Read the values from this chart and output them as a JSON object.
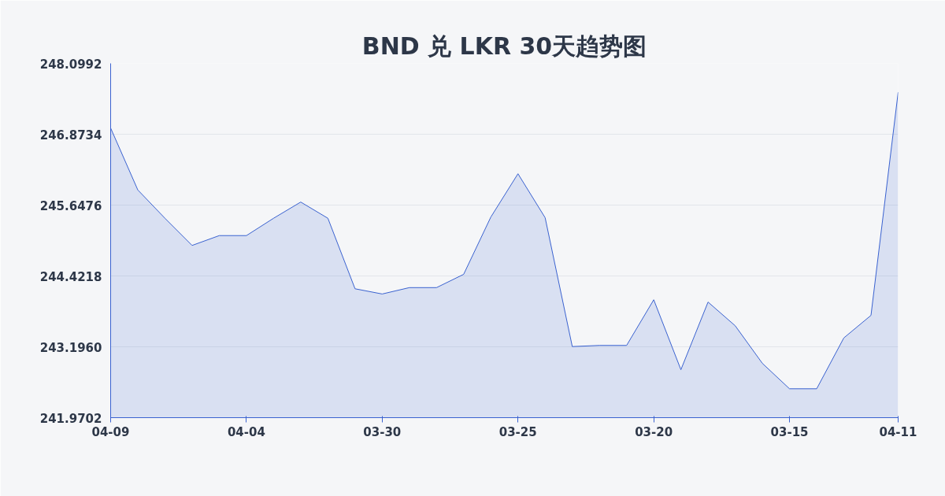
{
  "chart_data": {
    "type": "area",
    "title": "BND 兑 LKR 30天趋势图",
    "categories": [
      "04-09",
      null,
      null,
      null,
      null,
      "04-04",
      null,
      null,
      null,
      null,
      "03-30",
      null,
      null,
      null,
      null,
      "03-25",
      null,
      null,
      null,
      null,
      "03-20",
      null,
      null,
      null,
      null,
      "03-15",
      null,
      null,
      null,
      "04-11"
    ],
    "series": [
      {
        "color": "#3a62d0",
        "values": [
          246.98,
          245.91,
          245.42,
          244.95,
          245.12,
          245.12,
          245.42,
          245.7,
          245.42,
          244.2,
          244.11,
          244.22,
          244.22,
          244.45,
          245.44,
          246.19,
          245.43,
          243.2,
          243.22,
          243.22,
          244.01,
          242.8,
          243.97,
          243.56,
          242.91,
          242.47,
          242.47,
          243.35,
          243.74,
          247.6
        ]
      }
    ],
    "ylim": [
      241.9702,
      248.0992
    ],
    "yticks": [
      {
        "value": 241.9702,
        "label": "241.9702"
      },
      {
        "value": 243.196,
        "label": "243.1960"
      },
      {
        "value": 244.4218,
        "label": "244.4218"
      },
      {
        "value": 245.6476,
        "label": "245.6476"
      },
      {
        "value": 246.8734,
        "label": "246.8734"
      },
      {
        "value": 248.0992,
        "label": "248.0992"
      }
    ],
    "grid": "y",
    "marker": "none",
    "line_style": "solid"
  }
}
